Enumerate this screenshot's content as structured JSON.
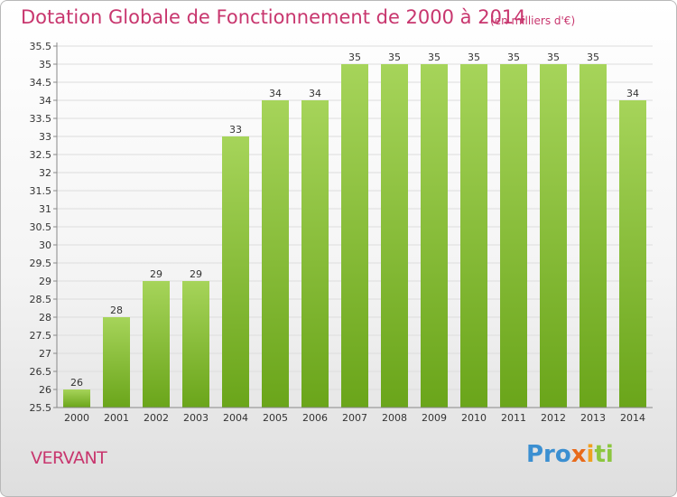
{
  "title": "Dotation Globale de Fonctionnement de 2000 à 2014",
  "subtitle": "(en milliers d'€)",
  "commune": "VERVANT",
  "logo": {
    "p1": "Pro",
    "p2": "x",
    "p3": "i",
    "p4": "ti"
  },
  "colors": {
    "bar_top": "#a6d45a",
    "bar_bottom": "#6aa51a",
    "title": "#c8366e"
  },
  "chart_data": {
    "type": "bar",
    "title": "Dotation Globale de Fonctionnement de 2000 à 2014",
    "subtitle": "(en milliers d'€)",
    "categories": [
      "2000",
      "2001",
      "2002",
      "2003",
      "2004",
      "2005",
      "2006",
      "2007",
      "2008",
      "2009",
      "2010",
      "2011",
      "2012",
      "2013",
      "2014"
    ],
    "values": [
      26,
      28,
      29,
      29,
      33,
      34,
      34,
      35,
      35,
      35,
      35,
      35,
      35,
      35,
      34
    ],
    "ylim": [
      25.5,
      35.5
    ],
    "ytick_step": 0.5,
    "grid": true
  }
}
